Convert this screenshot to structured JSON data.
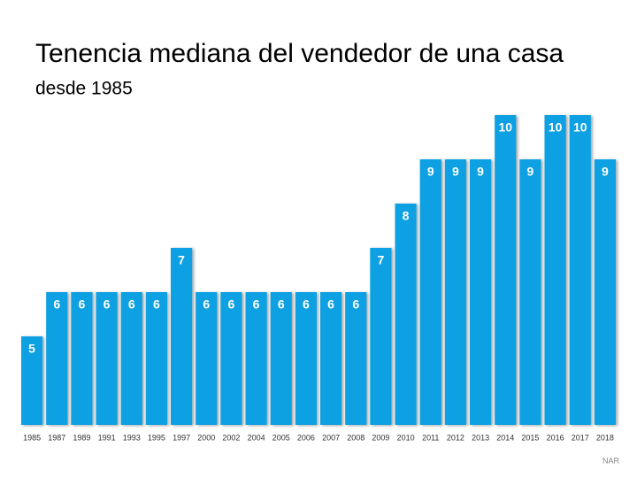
{
  "chart_data": {
    "type": "bar",
    "title": "Tenencia mediana del vendedor de una casa",
    "subtitle": "desde 1985",
    "source": "NAR",
    "categories": [
      "1985",
      "1987",
      "1989",
      "1991",
      "1993",
      "1995",
      "1997",
      "2000",
      "2002",
      "2004",
      "2005",
      "2006",
      "2007",
      "2008",
      "2009",
      "2010",
      "2011",
      "2012",
      "2013",
      "2014",
      "2015",
      "2016",
      "2017",
      "2018"
    ],
    "values": [
      5,
      6,
      6,
      6,
      6,
      6,
      7,
      6,
      6,
      6,
      6,
      6,
      6,
      6,
      7,
      8,
      9,
      9,
      9,
      10,
      9,
      10,
      10,
      9
    ],
    "color": "#0aa0e2",
    "ylim": [
      3,
      10
    ]
  }
}
